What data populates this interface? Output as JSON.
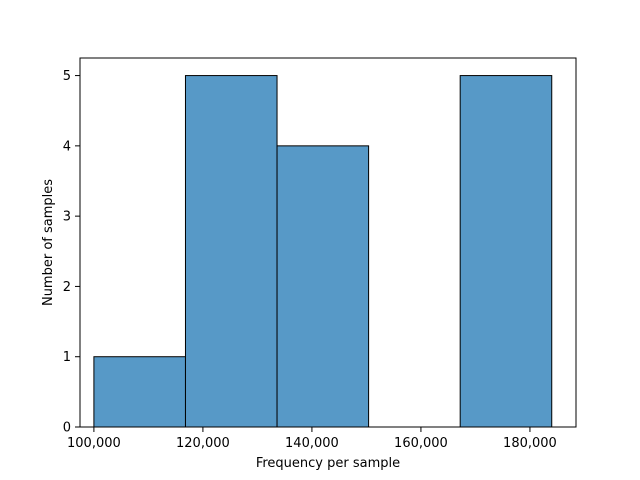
{
  "chart_data": {
    "type": "bar",
    "title": "",
    "xlabel": "Frequency per sample",
    "ylabel": "Number of samples",
    "xlim": [
      97450,
      188450
    ],
    "ylim": [
      0,
      5.25
    ],
    "bins": [
      {
        "start": 100000,
        "end": 116800,
        "count": 1
      },
      {
        "start": 116800,
        "end": 133600,
        "count": 5
      },
      {
        "start": 133600,
        "end": 150400,
        "count": 4
      },
      {
        "start": 150400,
        "end": 167200,
        "count": 0
      },
      {
        "start": 167200,
        "end": 184000,
        "count": 5
      }
    ],
    "x_ticks": [
      {
        "value": 100000,
        "label": "100,000"
      },
      {
        "value": 120000,
        "label": "120,000"
      },
      {
        "value": 140000,
        "label": "140,000"
      },
      {
        "value": 160000,
        "label": "160,000"
      },
      {
        "value": 180000,
        "label": "180,000"
      }
    ],
    "y_ticks": [
      {
        "value": 0,
        "label": "0"
      },
      {
        "value": 1,
        "label": "1"
      },
      {
        "value": 2,
        "label": "2"
      },
      {
        "value": 3,
        "label": "3"
      },
      {
        "value": 4,
        "label": "4"
      },
      {
        "value": 5,
        "label": "5"
      }
    ],
    "grid": false,
    "legend": "none",
    "colors": {
      "bar_fill": "#5799c7",
      "bar_edge": "#000000",
      "axis": "#000000"
    }
  }
}
